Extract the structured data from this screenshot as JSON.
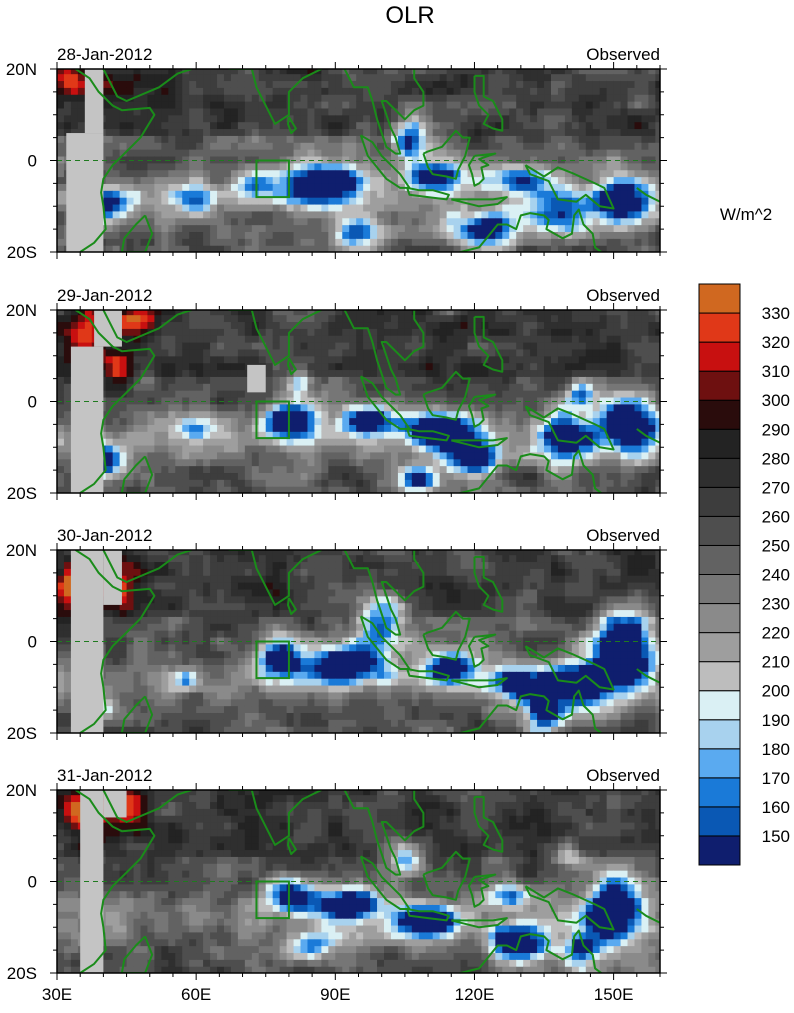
{
  "title": "OLR",
  "colorbar": {
    "unit": "W/m^2",
    "levels": [
      150,
      160,
      170,
      180,
      190,
      200,
      210,
      220,
      230,
      240,
      250,
      260,
      270,
      280,
      290,
      300,
      310,
      320,
      330
    ],
    "colors": [
      "#0f1e6e",
      "#0a58b4",
      "#1a7ad8",
      "#5aaaf0",
      "#a8d2ee",
      "#daf0f4",
      "#bdbdbd",
      "#9e9e9e",
      "#8a8a8a",
      "#767676",
      "#626262",
      "#4e4e4e",
      "#3d3d3d",
      "#2f2f2f",
      "#232323",
      "#2a0c0c",
      "#6e1010",
      "#c81010",
      "#e03818",
      "#d06820"
    ]
  },
  "axes": {
    "x_ticks": [
      "30E",
      "60E",
      "90E",
      "120E",
      "150E"
    ],
    "y_ticks": [
      "20N",
      "0",
      "20S"
    ]
  },
  "panels": [
    {
      "date": "28-Jan-2012",
      "label": "Observed"
    },
    {
      "date": "29-Jan-2012",
      "label": "Observed"
    },
    {
      "date": "30-Jan-2012",
      "label": "Observed"
    },
    {
      "date": "31-Jan-2012",
      "label": "Observed"
    }
  ],
  "chart_data": {
    "type": "heatmap",
    "title": "OLR",
    "units": "W/m^2",
    "xlim": [
      30,
      160
    ],
    "ylim": [
      -20,
      20
    ],
    "x_ticks": [
      30,
      60,
      90,
      120,
      150
    ],
    "y_ticks": [
      20,
      0,
      -20
    ],
    "panels": [
      "28-Jan-2012",
      "29-Jan-2012",
      "30-Jan-2012",
      "31-Jan-2012"
    ],
    "field_description": "Low OLR (150-190 W/m^2) band along ~5-15S from 35E to 160E and over the Maritime Continent; high OLR (290-330 W/m^2) over NE Africa/Arabia near 30-50E, 10-20N; box marked at 73-80E, 0-8S; green coastlines"
  }
}
